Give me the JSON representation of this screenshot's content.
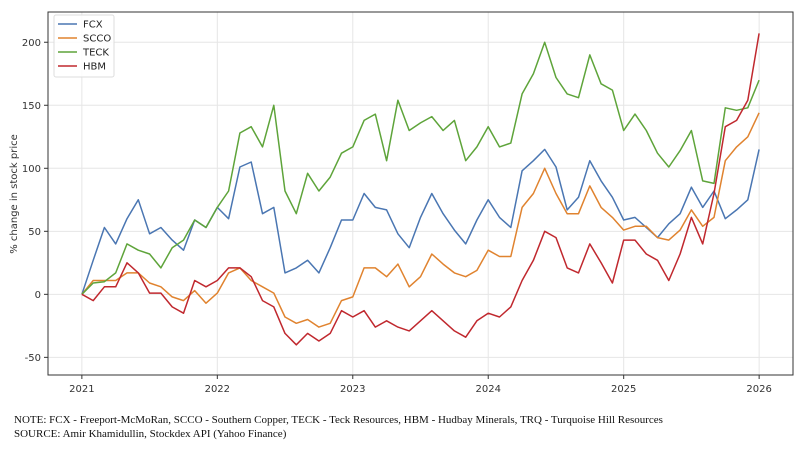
{
  "chart_data": {
    "type": "line",
    "xlabel": "",
    "ylabel": "% change in stock price",
    "ylim": [
      -64,
      224
    ],
    "xlim": [
      "2020-10",
      "2026-04"
    ],
    "yticks": [
      -50,
      0,
      50,
      100,
      150,
      200
    ],
    "xticks": [
      "2021",
      "2022",
      "2023",
      "2024",
      "2025",
      "2026"
    ],
    "grid": true,
    "legend_position": "top-left",
    "x": [
      "2021-01",
      "2021-02",
      "2021-03",
      "2021-04",
      "2021-05",
      "2021-06",
      "2021-07",
      "2021-08",
      "2021-09",
      "2021-10",
      "2021-11",
      "2021-12",
      "2022-01",
      "2022-02",
      "2022-03",
      "2022-04",
      "2022-05",
      "2022-06",
      "2022-07",
      "2022-08",
      "2022-09",
      "2022-10",
      "2022-11",
      "2022-12",
      "2023-01",
      "2023-02",
      "2023-03",
      "2023-04",
      "2023-05",
      "2023-06",
      "2023-07",
      "2023-08",
      "2023-09",
      "2023-10",
      "2023-11",
      "2023-12",
      "2024-01",
      "2024-02",
      "2024-03",
      "2024-04",
      "2024-05",
      "2024-06",
      "2024-07",
      "2024-08",
      "2024-09",
      "2024-10",
      "2024-11",
      "2024-12",
      "2025-01",
      "2025-02",
      "2025-03",
      "2025-04",
      "2025-05",
      "2025-06",
      "2025-07",
      "2025-08",
      "2025-09",
      "2025-10",
      "2025-11",
      "2025-12",
      "2026-01"
    ],
    "series": [
      {
        "name": "FCX",
        "color": "#4a76b2",
        "values": [
          0,
          27,
          53,
          40,
          60,
          75,
          48,
          53,
          43,
          35,
          59,
          53,
          69,
          60,
          101,
          105,
          64,
          69,
          17,
          21,
          27,
          17,
          37,
          59,
          59,
          80,
          69,
          67,
          48,
          37,
          61,
          80,
          64,
          51,
          40,
          59,
          75,
          61,
          53,
          98,
          106,
          115,
          101,
          67,
          77,
          106,
          90,
          77,
          59,
          61,
          53,
          45,
          56,
          64,
          85,
          69,
          82,
          60,
          67,
          75,
          115
        ]
      },
      {
        "name": "SCCO",
        "color": "#e0832f",
        "values": [
          0,
          11,
          11,
          11,
          17,
          17,
          9,
          6,
          -2,
          -5,
          3,
          -7,
          1,
          17,
          21,
          11,
          6,
          1,
          -18,
          -23,
          -20,
          -26,
          -23,
          -5,
          -2,
          21,
          21,
          14,
          24,
          6,
          14,
          32,
          24,
          17,
          14,
          19,
          35,
          30,
          30,
          69,
          80,
          100,
          80,
          64,
          64,
          86,
          69,
          61,
          51,
          54,
          54,
          45,
          43,
          51,
          67,
          54,
          61,
          106,
          117,
          125,
          144
        ]
      },
      {
        "name": "TECK",
        "color": "#5ea43a",
        "values": [
          0,
          9,
          10,
          17,
          40,
          35,
          32,
          21,
          37,
          43,
          59,
          53,
          69,
          82,
          128,
          133,
          117,
          150,
          82,
          64,
          96,
          82,
          93,
          112,
          117,
          138,
          143,
          106,
          154,
          130,
          136,
          141,
          130,
          138,
          106,
          117,
          133,
          117,
          120,
          159,
          175,
          200,
          172,
          159,
          156,
          190,
          167,
          162,
          130,
          143,
          130,
          112,
          101,
          114,
          130,
          90,
          88,
          148,
          146,
          148,
          170
        ]
      },
      {
        "name": "HBM",
        "color": "#c0282e",
        "values": [
          0,
          -5,
          6,
          6,
          25,
          17,
          1,
          1,
          -10,
          -15,
          11,
          6,
          11,
          21,
          21,
          14,
          -5,
          -10,
          -31,
          -40,
          -31,
          -37,
          -31,
          -13,
          -18,
          -13,
          -26,
          -21,
          -26,
          -29,
          -21,
          -13,
          -21,
          -29,
          -34,
          -21,
          -15,
          -18,
          -10,
          11,
          27,
          50,
          45,
          21,
          17,
          40,
          25,
          9,
          43,
          43,
          32,
          27,
          11,
          32,
          61,
          40,
          80,
          133,
          138,
          154,
          207
        ]
      }
    ]
  },
  "footer": {
    "note": "NOTE: FCX - Freeport-McMoRan, SCCO - Southern Copper, TECK - Teck Resources, HBM - Hudbay Minerals, TRQ - Turquoise Hill Resources",
    "source": "SOURCE: Amir Khamidullin, Stockdex API (Yahoo Finance)"
  }
}
